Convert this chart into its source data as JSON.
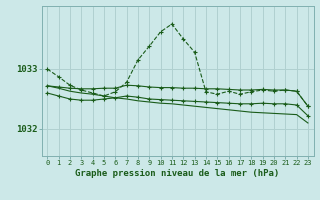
{
  "title": "Graphe pression niveau de la mer (hPa)",
  "bg_color": "#cce8e8",
  "grid_color": "#b0d0d0",
  "line_color": "#1a5c1a",
  "x_labels": [
    "0",
    "1",
    "2",
    "3",
    "4",
    "5",
    "6",
    "7",
    "8",
    "9",
    "10",
    "11",
    "12",
    "13",
    "14",
    "15",
    "16",
    "17",
    "18",
    "19",
    "20",
    "21",
    "22",
    "23"
  ],
  "yticks": [
    1032,
    1033
  ],
  "ylim": [
    1031.55,
    1034.05
  ],
  "xlim": [
    -0.5,
    23.5
  ],
  "series": {
    "line_top": [
      1033.0,
      1032.87,
      1032.73,
      1032.65,
      1032.6,
      1032.55,
      1032.62,
      1032.78,
      1033.15,
      1033.38,
      1033.62,
      1033.75,
      1033.5,
      1033.28,
      1032.62,
      1032.58,
      1032.63,
      1032.58,
      1032.62,
      1032.65,
      1032.63,
      1032.65,
      1032.63,
      1032.38
    ],
    "line_mid1": [
      1032.72,
      1032.7,
      1032.68,
      1032.67,
      1032.67,
      1032.68,
      1032.68,
      1032.73,
      1032.72,
      1032.7,
      1032.69,
      1032.69,
      1032.68,
      1032.68,
      1032.67,
      1032.67,
      1032.66,
      1032.65,
      1032.65,
      1032.66,
      1032.65,
      1032.65,
      1032.63,
      1032.38
    ],
    "line_mid2": [
      1032.6,
      1032.55,
      1032.5,
      1032.48,
      1032.48,
      1032.5,
      1032.52,
      1032.55,
      1032.53,
      1032.5,
      1032.49,
      1032.48,
      1032.47,
      1032.46,
      1032.45,
      1032.44,
      1032.43,
      1032.42,
      1032.42,
      1032.43,
      1032.42,
      1032.42,
      1032.4,
      1032.22
    ],
    "line_bot": [
      1032.72,
      1032.68,
      1032.63,
      1032.6,
      1032.58,
      1032.55,
      1032.52,
      1032.5,
      1032.47,
      1032.45,
      1032.43,
      1032.42,
      1032.4,
      1032.38,
      1032.36,
      1032.34,
      1032.32,
      1032.3,
      1032.28,
      1032.27,
      1032.26,
      1032.25,
      1032.24,
      1032.1
    ]
  }
}
